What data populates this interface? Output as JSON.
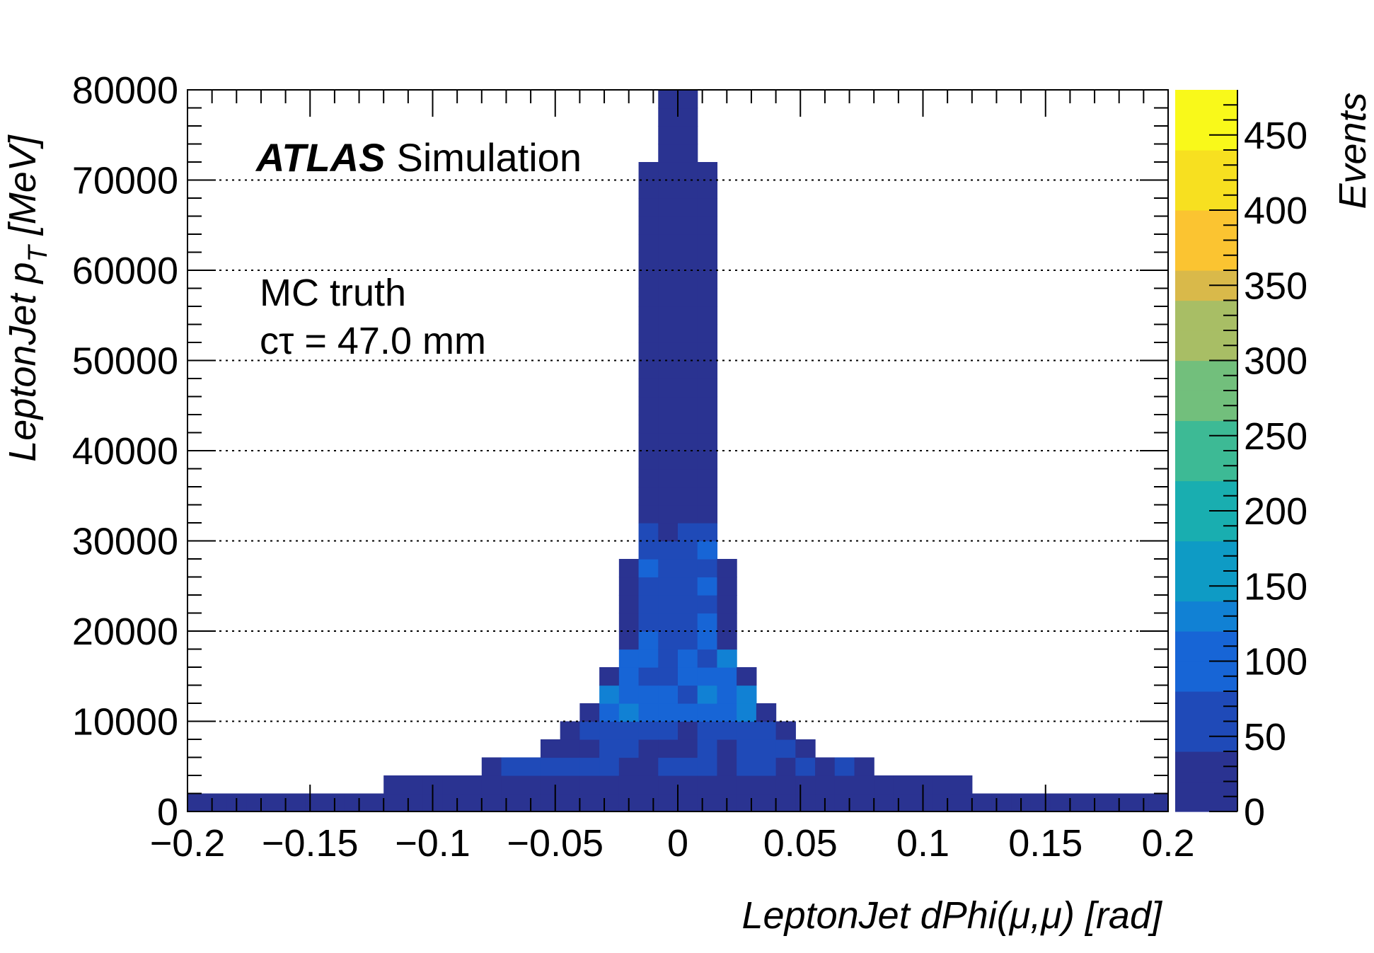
{
  "chart_data": {
    "type": "heatmap",
    "xlabel": "LeptonJet dPhi(μ,μ) [rad]",
    "ylabel": "LeptonJet p_T [MeV]",
    "ylabel_main": "LeptonJet p",
    "ylabel_sub": "T",
    "ylabel_unit": " [MeV]",
    "zlabel": "Events",
    "xlim": [
      -0.2,
      0.2
    ],
    "ylim": [
      0,
      80000
    ],
    "zlim": [
      0,
      480
    ],
    "x_ticks": [
      "−0.2",
      "−0.15",
      "−0.1",
      "−0.05",
      "0",
      "0.05",
      "0.1",
      "0.15",
      "0.2"
    ],
    "x_tick_values": [
      -0.2,
      -0.15,
      -0.1,
      -0.05,
      0,
      0.05,
      0.1,
      0.15,
      0.2
    ],
    "y_ticks": [
      "0",
      "10000",
      "20000",
      "30000",
      "40000",
      "50000",
      "60000",
      "70000",
      "80000"
    ],
    "y_tick_values": [
      0,
      10000,
      20000,
      30000,
      40000,
      50000,
      60000,
      70000,
      80000
    ],
    "z_ticks": [
      "0",
      "50",
      "100",
      "150",
      "200",
      "250",
      "300",
      "350",
      "400",
      "450"
    ],
    "z_tick_values": [
      0,
      50,
      100,
      150,
      200,
      250,
      300,
      350,
      400,
      450
    ],
    "grid": "horizontal dotted",
    "colormap": [
      "#2a3391",
      "#1f4ab8",
      "#1765d6",
      "#1181d4",
      "#0e9bc5",
      "#19aeb0",
      "#3dba95",
      "#72bf7c",
      "#a8be65",
      "#d9b94a",
      "#fbc431",
      "#f7e020",
      "#f9f91a"
    ],
    "x_bin_width": 0.008,
    "y_bin_width": 2000,
    "bin_values_note": "counts per bin (approximate, read from colour scale)"
  },
  "annotations": {
    "atlas": "ATLAS",
    "simulation": "Simulation",
    "mc_truth": "MC truth",
    "ctau": "cτ = 47.0 mm"
  }
}
